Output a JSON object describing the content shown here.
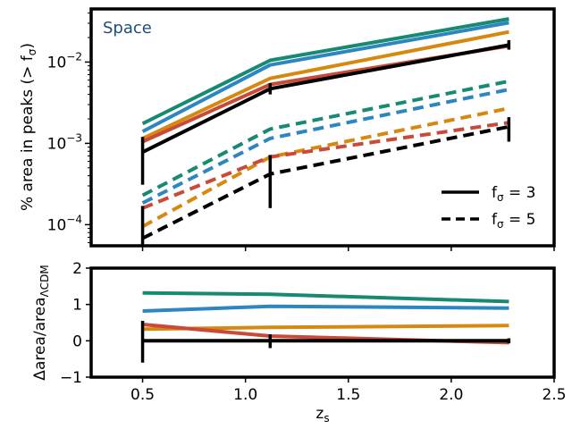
{
  "chart_data": [
    {
      "type": "line",
      "panel": "top",
      "yscale": "log",
      "xlim": [
        0.25,
        2.5
      ],
      "ylim": [
        5.5e-05,
        0.045
      ],
      "x": [
        0.5,
        1.12,
        2.28
      ],
      "ylabel": "% area in peaks (> f",
      "ylabel_sub": "σ",
      "ylabel_end": ")",
      "annotation": "Space",
      "yticks": [
        {
          "value": 0.01,
          "base": "10",
          "exp": "−2"
        },
        {
          "value": 0.001,
          "base": "10",
          "exp": "−3"
        },
        {
          "value": 0.0001,
          "base": "10",
          "exp": "−4"
        }
      ],
      "legend": {
        "position": "lower-right",
        "entries": [
          {
            "base": "f",
            "sub": "σ",
            "value": " = 3",
            "style": "solid"
          },
          {
            "base": "f",
            "sub": "σ",
            "value": " = 5",
            "style": "dashed"
          }
        ]
      },
      "series": [
        {
          "color": "#168a72",
          "style": "solid",
          "values": [
            0.00175,
            0.0105,
            0.034
          ]
        },
        {
          "color": "#2e86c1",
          "style": "solid",
          "values": [
            0.0014,
            0.0092,
            0.0305
          ]
        },
        {
          "color": "#d68910",
          "style": "solid",
          "values": [
            0.00115,
            0.0063,
            0.0235
          ]
        },
        {
          "color": "#c94a38",
          "style": "solid",
          "values": [
            0.00105,
            0.0053,
            0.0158
          ]
        },
        {
          "color": "#000000",
          "style": "solid",
          "values": [
            0.00078,
            0.0047,
            0.0162
          ],
          "errors": [
            [
              0.00031,
              0.0012
            ],
            [
              0.004,
              0.0055
            ],
            [
              0.0142,
              0.0186
            ]
          ]
        },
        {
          "color": "#168a72",
          "style": "dashed",
          "values": [
            0.00023,
            0.0015,
            0.0058
          ]
        },
        {
          "color": "#2e86c1",
          "style": "dashed",
          "values": [
            0.000185,
            0.00115,
            0.0046
          ]
        },
        {
          "color": "#d68910",
          "style": "dashed",
          "values": [
            9.5e-05,
            0.00068,
            0.0027
          ]
        },
        {
          "color": "#c94a38",
          "style": "dashed",
          "values": [
            0.00016,
            0.00068,
            0.0018
          ]
        },
        {
          "color": "#000000",
          "style": "dashed",
          "values": [
            6.8e-05,
            0.00042,
            0.0016
          ],
          "errors": [
            [
              5.5e-05,
              0.00017
            ],
            [
              0.00016,
              0.00072
            ],
            [
              0.00105,
              0.0021
            ]
          ]
        }
      ]
    },
    {
      "type": "line",
      "panel": "bottom",
      "xlim": [
        0.25,
        2.5
      ],
      "ylim": [
        -1,
        2
      ],
      "x": [
        0.5,
        1.12,
        2.28
      ],
      "xlabel": "z",
      "xlabel_sub": "s",
      "ylabel": "Δarea/area",
      "ylabel_sub": "ΛCDM",
      "xticks": [
        "0.5",
        "1.0",
        "1.5",
        "2.0",
        "2.5"
      ],
      "xtick_values": [
        0.5,
        1.0,
        1.5,
        2.0,
        2.5
      ],
      "yticks": [
        "−1",
        "0",
        "1",
        "2"
      ],
      "ytick_values": [
        -1,
        0,
        1,
        2
      ],
      "series": [
        {
          "color": "#168a72",
          "values": [
            1.32,
            1.28,
            1.08
          ]
        },
        {
          "color": "#2e86c1",
          "values": [
            0.82,
            0.95,
            0.9
          ]
        },
        {
          "color": "#d68910",
          "values": [
            0.32,
            0.37,
            0.42
          ]
        },
        {
          "color": "#c94a38",
          "values": [
            0.45,
            0.13,
            -0.05
          ]
        },
        {
          "color": "#000000",
          "values": [
            0.0,
            0.0,
            0.0
          ],
          "errors": [
            [
              -0.6,
              0.55
            ],
            [
              -0.2,
              0.18
            ],
            [
              -0.07,
              0.07
            ]
          ]
        }
      ]
    }
  ]
}
